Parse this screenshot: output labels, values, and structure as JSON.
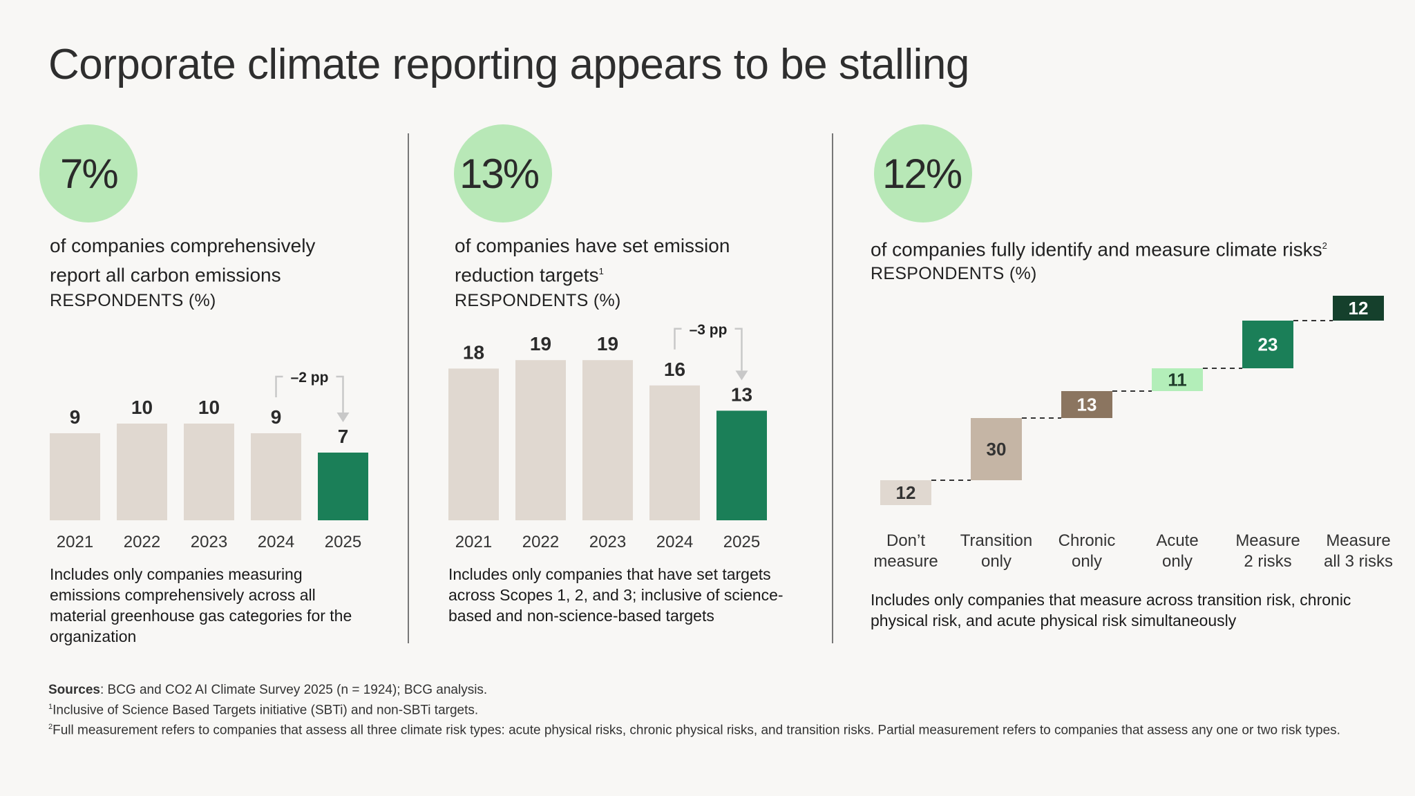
{
  "title": "Corporate climate reporting appears to be stalling",
  "panels": [
    {
      "kpi": "7%",
      "subtitle": "of companies comprehensively report all carbon emissions",
      "subtitle_sup": "",
      "respondents_label": "RESPONDENTS (%)",
      "note": "Includes only companies measuring emissions comprehensively across all material greenhouse gas categories for the organization"
    },
    {
      "kpi": "13%",
      "subtitle": "of companies have set emission reduction targets",
      "subtitle_sup": "1",
      "respondents_label": "RESPONDENTS (%)",
      "note": "Includes only companies that have set targets across Scopes 1, 2, and 3; inclusive of science-based and non-science-based targets"
    },
    {
      "kpi": "12%",
      "subtitle": "of companies fully identify and measure climate risks",
      "subtitle_sup": "2",
      "respondents_label": "RESPONDENTS (%)",
      "note": "Includes only companies that measure across transition risk, chronic physical risk, and acute physical risk simultaneously"
    }
  ],
  "chart_data": [
    {
      "type": "bar",
      "categories": [
        "2021",
        "2022",
        "2023",
        "2024",
        "2025"
      ],
      "values": [
        9,
        10,
        10,
        9,
        7
      ],
      "highlight_index": 4,
      "annotation": "–2 pp",
      "colors": {
        "base": "#e0d8d0",
        "highlight": "#1b7f58",
        "arrow": "#c8c8c8"
      }
    },
    {
      "type": "bar",
      "categories": [
        "2021",
        "2022",
        "2023",
        "2024",
        "2025"
      ],
      "values": [
        18,
        19,
        19,
        16,
        13
      ],
      "highlight_index": 4,
      "annotation": "–3 pp",
      "colors": {
        "base": "#e0d8d0",
        "highlight": "#1b7f58",
        "arrow": "#c8c8c8"
      }
    },
    {
      "type": "bar",
      "subtype": "waterfall",
      "categories": [
        "Don't measure",
        "Transition only",
        "Chronic only",
        "Acute only",
        "Measure 2 risks",
        "Measure all 3 risks"
      ],
      "category_lines": [
        [
          "Don’t",
          "measure"
        ],
        [
          "Transition",
          "only"
        ],
        [
          "Chronic",
          "only"
        ],
        [
          "Acute",
          "only"
        ],
        [
          "Measure",
          "2 risks"
        ],
        [
          "Measure",
          "all 3 risks"
        ]
      ],
      "values": [
        12,
        30,
        13,
        11,
        23,
        12
      ],
      "colors": [
        "#e0d8d0",
        "#c5b5a5",
        "#8b7560",
        "#b3eeb9",
        "#1b7f58",
        "#15402c"
      ],
      "label_colors": [
        "#333333",
        "#333333",
        "#ffffff",
        "#1f3b2a",
        "#ffffff",
        "#ffffff"
      ]
    }
  ],
  "footer": {
    "sources_label": "Sources",
    "sources_text": ": BCG and CO2 AI Climate Survey 2025 (n = 1924); BCG analysis.",
    "fn1_mark": "1",
    "fn1_text": "Inclusive of Science Based Targets initiative (SBTi) and non-SBTi targets.",
    "fn2_mark": "2",
    "fn2_text": "Full measurement refers to companies that assess all three climate risk types: acute physical risks, chronic physical risks, and transition risks. Partial measurement refers to companies that assess any one or two risk types."
  }
}
